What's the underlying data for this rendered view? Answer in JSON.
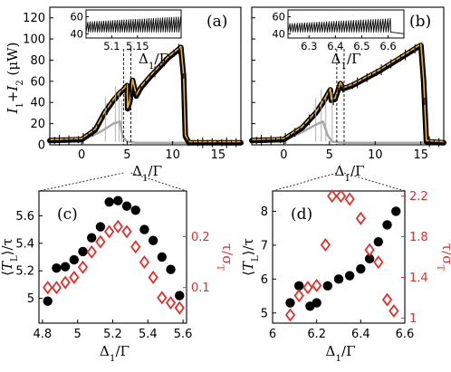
{
  "chart_data": [
    {
      "id": "a",
      "type": "line",
      "panel_label": "(a)",
      "xlabel": "Δ1/Γ",
      "ylabel": "I1+I2 (μW)",
      "xlim": [
        -3.5,
        17.5
      ],
      "ylim": [
        0,
        130
      ],
      "xticks": [
        "0",
        "5",
        "10",
        "15"
      ],
      "yticks": [
        "0",
        "20",
        "40",
        "60",
        "80",
        "100",
        "120"
      ],
      "colors": {
        "black": "#000000",
        "gold": "#f0b323",
        "gray": "#a8a8a8"
      },
      "series": [
        {
          "color": "black",
          "x": [
            -3.5,
            0,
            1.5,
            2.5,
            3.5,
            4.2,
            4.6,
            5.0,
            5.05,
            5.3,
            5.6,
            6.0,
            6.5,
            7.5,
            8.5,
            9.5,
            10.5,
            10.9,
            11.2,
            11.4,
            11.8,
            17.5
          ],
          "y": [
            4,
            5,
            14,
            30,
            42,
            49,
            52,
            56,
            34,
            41,
            61,
            46,
            54,
            64,
            73,
            82,
            89,
            92,
            65,
            8,
            2,
            2
          ]
        },
        {
          "color": "gold",
          "x": [
            -3.5,
            0,
            1.5,
            2.5,
            3.5,
            4.2,
            4.6,
            5.0,
            5.05,
            5.3,
            5.6,
            6.0,
            6.5,
            7.5,
            8.5,
            9.5,
            10.5,
            10.9,
            11.2,
            11.4,
            11.8,
            17.5
          ],
          "y": [
            5,
            6,
            15,
            31,
            43,
            50,
            53,
            57,
            35,
            42,
            62,
            47,
            55,
            65,
            74,
            83,
            90,
            93,
            66,
            9,
            3,
            3
          ]
        },
        {
          "color": "gray",
          "x": [
            -3.5,
            0,
            2,
            3.5,
            4.2,
            4.5,
            5,
            6,
            17.5
          ],
          "y": [
            3,
            4,
            12,
            20,
            22,
            8,
            3,
            2,
            2
          ]
        }
      ],
      "markers_x": [
        4.6,
        5.4
      ],
      "inset": {
        "xlabel": "Δ1/Γ",
        "xlim": [
          5.05,
          5.235
        ],
        "ylim": [
          35,
          68
        ],
        "xticks": [
          "5.1",
          "5.15"
        ],
        "yticks": [
          "40",
          "60"
        ],
        "oscillation": {
          "type": "sawtooth",
          "base": 42,
          "amplitude_start": 12,
          "amplitude_end": 18,
          "cycles": 42
        }
      }
    },
    {
      "id": "b",
      "type": "line",
      "panel_label": "(b)",
      "xlabel": "Δ1/Γ",
      "ylabel": "",
      "xlim": [
        -3.5,
        17.5
      ],
      "ylim": [
        0,
        130
      ],
      "xticks": [
        "0",
        "5",
        "10",
        "15"
      ],
      "yticks": [],
      "colors": {
        "black": "#000000",
        "gold": "#f0b323",
        "gray": "#a8a8a8"
      },
      "series": [
        {
          "color": "black",
          "x": [
            -3.5,
            0,
            2,
            3.5,
            4.3,
            5.1,
            5.2,
            5.6,
            6.2,
            6.5,
            7.5,
            9,
            10.5,
            12,
            13.5,
            14.6,
            15.0,
            15.3,
            15.6,
            17.5
          ],
          "y": [
            4,
            5,
            16,
            30,
            40,
            52,
            42,
            43,
            58,
            53,
            56,
            63,
            70,
            78,
            86,
            92,
            94,
            60,
            3,
            2
          ]
        },
        {
          "color": "gold",
          "x": [
            -3.5,
            0,
            2,
            3.5,
            4.3,
            5.1,
            5.2,
            5.6,
            6.2,
            6.5,
            7.5,
            9,
            10.5,
            12,
            13.5,
            14.6,
            15.0,
            15.3,
            15.6,
            17.5
          ],
          "y": [
            5,
            6,
            17,
            31,
            41,
            53,
            43,
            44,
            59,
            54,
            57,
            64,
            71,
            79,
            87,
            93,
            95,
            61,
            4,
            3
          ]
        },
        {
          "color": "gray",
          "x": [
            -3.5,
            0,
            2,
            3.5,
            4.3,
            4.8,
            5.3,
            6.5,
            17.5
          ],
          "y": [
            3,
            4,
            12,
            19,
            22,
            9,
            3,
            2,
            2
          ]
        }
      ],
      "markers_x": [
        5.8,
        6.6
      ],
      "inset": {
        "xlabel": "Δ1/Γ",
        "xlim": [
          6.22,
          6.66
        ],
        "ylim": [
          35,
          68
        ],
        "xticks": [
          "6.3",
          "6.4",
          "6.5",
          "6.6"
        ],
        "yticks": [
          "40",
          "60"
        ],
        "oscillation": {
          "type": "sawtooth",
          "base": 42,
          "amplitude_start": 10,
          "amplitude_end": 16,
          "cycles": 42,
          "stop_x": 6.61
        }
      }
    },
    {
      "id": "c",
      "type": "scatter",
      "panel_label": "(c)",
      "xlabel": "Δ1/Γ",
      "ylabel": "⟨TL⟩/τ",
      "ylabel_right": "τ/σT",
      "xlim": [
        4.78,
        5.62
      ],
      "ylim": [
        4.82,
        5.78
      ],
      "ylim_right": [
        0.03,
        0.29
      ],
      "xticks": [
        "4.8",
        "5",
        "5.2",
        "5.4",
        "5.6"
      ],
      "yticks": [
        "5",
        "5.2",
        "5.4",
        "5.6"
      ],
      "yticks_right": [
        "0.1",
        "0.2"
      ],
      "series": [
        {
          "name": "",
          "marker": "circle",
          "color": "#000000",
          "x": [
            4.83,
            4.88,
            4.93,
            4.98,
            5.03,
            5.08,
            5.13,
            5.18,
            5.23,
            5.28,
            5.33,
            5.38,
            5.43,
            5.48,
            5.53,
            5.58
          ],
          "y": [
            4.98,
            5.22,
            5.23,
            5.28,
            5.34,
            5.44,
            5.52,
            5.7,
            5.71,
            5.67,
            5.64,
            5.5,
            5.42,
            5.3,
            5.21,
            5.02
          ]
        },
        {
          "name": "",
          "marker": "diamond",
          "color": "#e0302c",
          "axis": "right",
          "x": [
            4.83,
            4.88,
            4.93,
            4.98,
            5.03,
            5.08,
            5.13,
            5.18,
            5.23,
            5.28,
            5.33,
            5.38,
            5.43,
            5.48,
            5.53,
            5.58
          ],
          "y": [
            0.1,
            0.1,
            0.11,
            0.12,
            0.14,
            0.17,
            0.19,
            0.21,
            0.22,
            0.21,
            0.18,
            0.15,
            0.12,
            0.08,
            0.07,
            0.06
          ]
        }
      ]
    },
    {
      "id": "d",
      "type": "scatter",
      "panel_label": "(d)",
      "xlabel": "Δ1/Γ",
      "ylabel": "⟨TL⟩/τ",
      "ylabel_right": "τ/σT",
      "xlim": [
        6.0,
        6.6
      ],
      "ylim": [
        4.7,
        8.6
      ],
      "ylim_right": [
        0.95,
        2.25
      ],
      "xticks": [
        "6",
        "6.2",
        "6.4",
        "6.6"
      ],
      "yticks": [
        "5",
        "6",
        "7",
        "8"
      ],
      "yticks_right": [
        "1",
        "1.4",
        "1.8",
        "2.2"
      ],
      "series": [
        {
          "name": "",
          "marker": "circle",
          "color": "#000000",
          "x": [
            6.08,
            6.12,
            6.17,
            6.2,
            6.25,
            6.3,
            6.35,
            6.4,
            6.44,
            6.48,
            6.52,
            6.56
          ],
          "y": [
            5.3,
            5.8,
            5.2,
            5.3,
            5.8,
            6.0,
            6.1,
            6.3,
            6.6,
            7.1,
            7.6,
            8.0
          ]
        },
        {
          "name": "",
          "marker": "diamond",
          "color": "#e0302c",
          "axis": "right",
          "x": [
            6.08,
            6.12,
            6.16,
            6.2,
            6.24,
            6.27,
            6.31,
            6.35,
            6.4,
            6.44,
            6.48,
            6.52,
            6.55
          ],
          "y": [
            1.03,
            1.22,
            1.3,
            1.32,
            1.72,
            2.2,
            2.2,
            2.17,
            1.98,
            1.67,
            1.55,
            1.18,
            1.07
          ]
        }
      ]
    }
  ]
}
